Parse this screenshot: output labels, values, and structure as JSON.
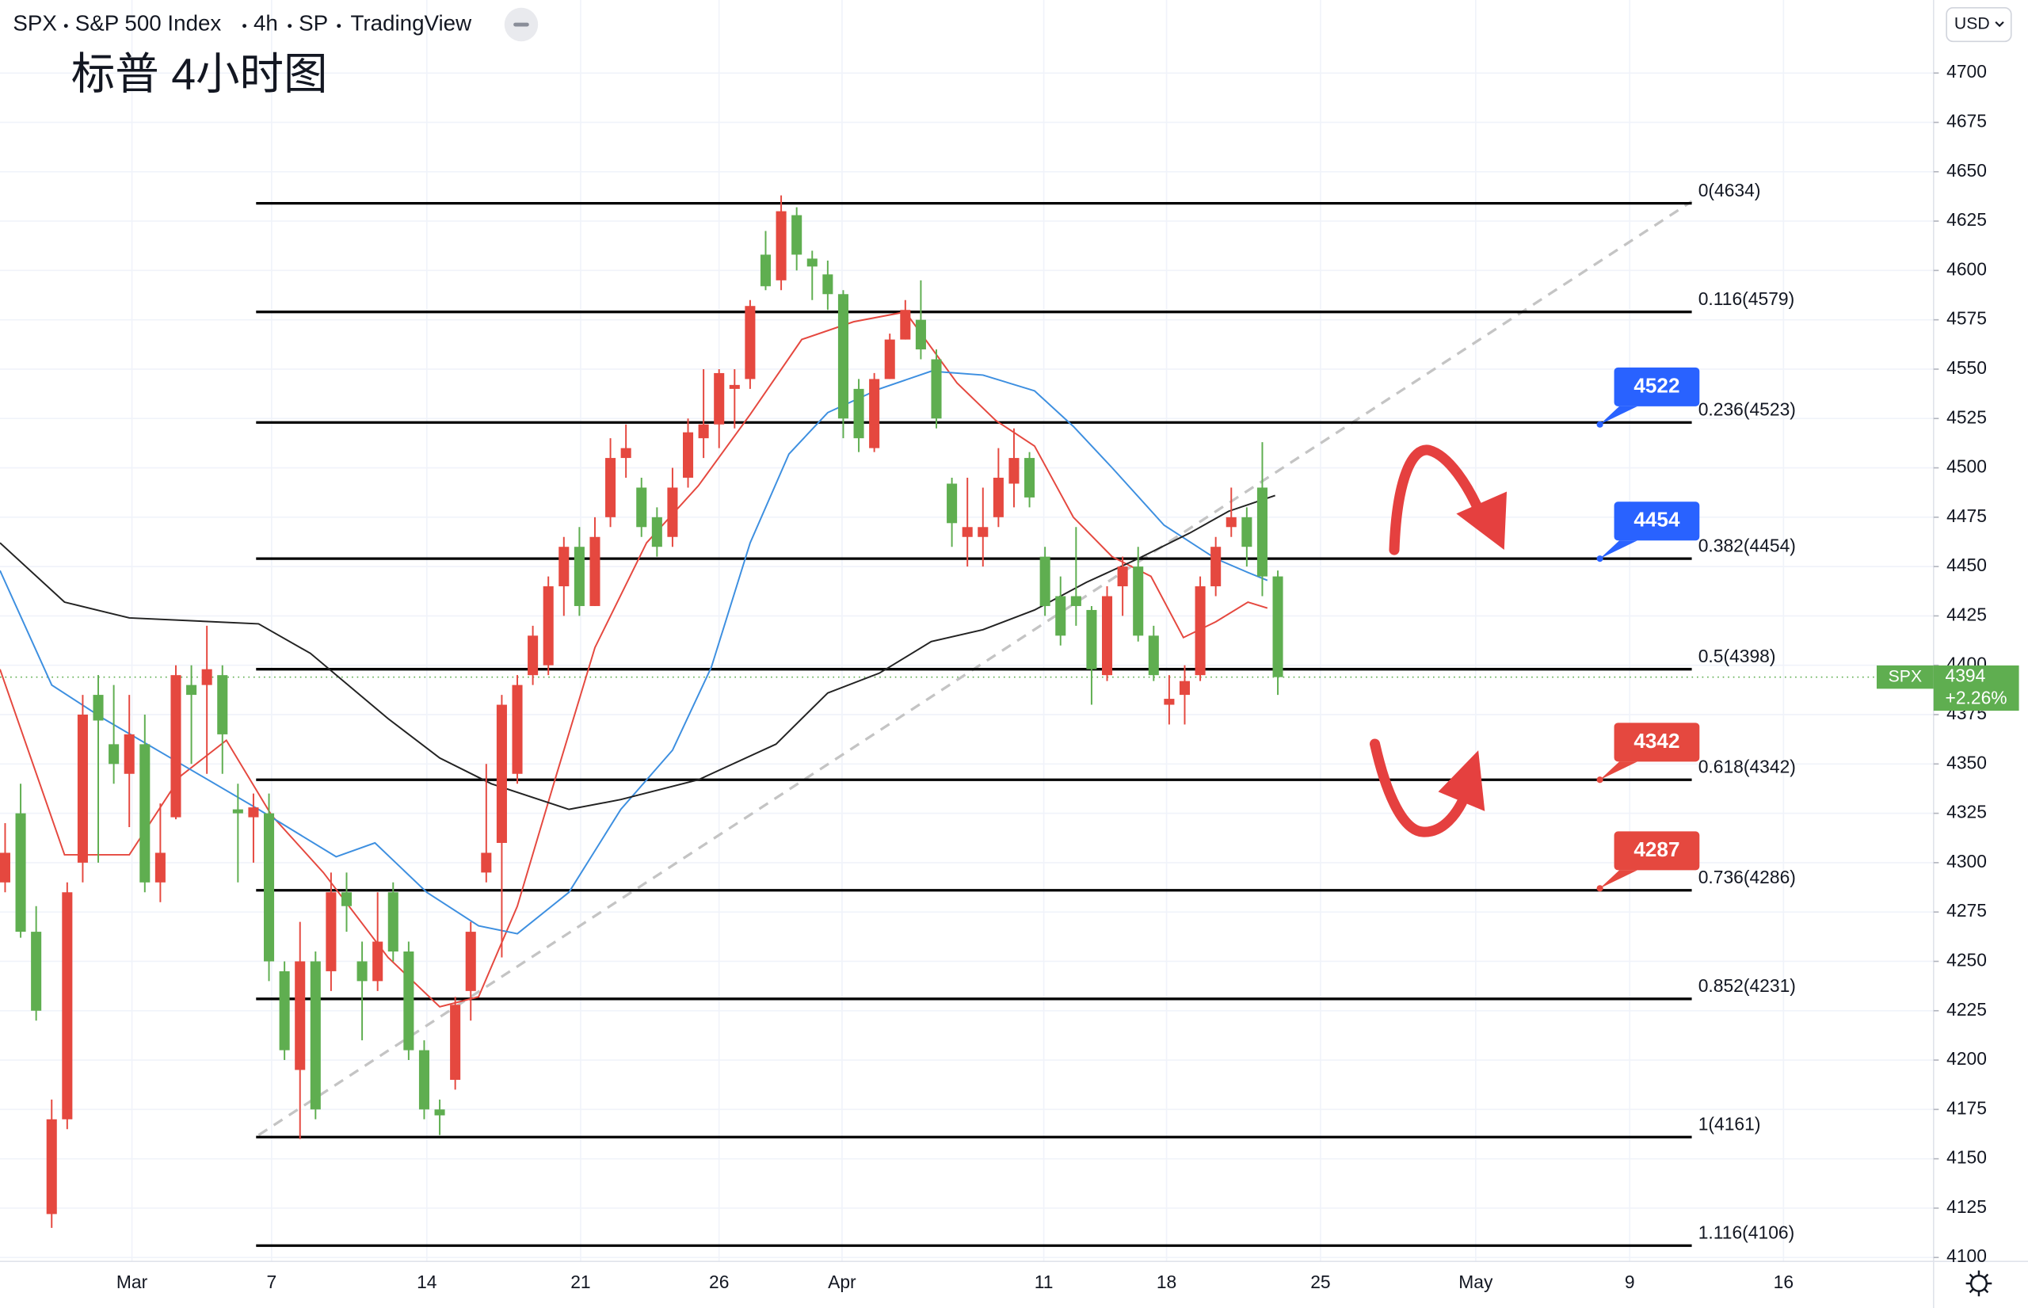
{
  "chart_data": {
    "type": "candlestick",
    "symbol": "SPX",
    "name": "S&P 500 Index",
    "interval": "4h",
    "exchange": "SP",
    "source": "TradingView",
    "currency": "USD",
    "title": "标普 4小时图",
    "up_color": "#e5483f",
    "down_color": "#5fae50",
    "x": [
      -17,
      -16,
      -15,
      -14,
      -13,
      -12,
      -11,
      -10,
      -9,
      -8,
      -7,
      -6,
      -5,
      -4,
      -3,
      -2,
      -1,
      0,
      1,
      2,
      3,
      4,
      5,
      6,
      7,
      8,
      9,
      10,
      11,
      12,
      13,
      14,
      15,
      16,
      17,
      18,
      19,
      20,
      21,
      22,
      23,
      24,
      25,
      26,
      27,
      28,
      29,
      30,
      31,
      32,
      33,
      34,
      35,
      36,
      37,
      38,
      39,
      40,
      41,
      42,
      43,
      44,
      45,
      46,
      47,
      48,
      49,
      50,
      51,
      52,
      53,
      54,
      55,
      56,
      57,
      58,
      59,
      60,
      61,
      62,
      63,
      64,
      65
    ],
    "open": [
      4290,
      4325,
      4265,
      4122,
      4170,
      4300,
      4385,
      4360,
      4345,
      4360,
      4290,
      4323,
      4390,
      4390,
      4395,
      4327,
      4323,
      4325,
      4245,
      4195,
      4250,
      4245,
      4285,
      4250,
      4240,
      4285,
      4255,
      4205,
      4175,
      4190,
      4235,
      4295,
      4310,
      4345,
      4395,
      4400,
      4440,
      4460,
      4430,
      4475,
      4505,
      4490,
      4475,
      4465,
      4495,
      4515,
      4522,
      4540,
      4545,
      4608,
      4595,
      4628,
      4606,
      4598,
      4588,
      4540,
      4510,
      4545,
      4565,
      4575,
      4555,
      4492,
      4465,
      4465,
      4475,
      4492,
      4505,
      4455,
      4435,
      4435,
      4428,
      4395,
      4440,
      4450,
      4415,
      4380,
      4385,
      4395,
      4440,
      4470,
      4475,
      4490,
      4445
    ],
    "high": [
      4320,
      4340,
      4278,
      4180,
      4290,
      4385,
      4395,
      4390,
      4385,
      4375,
      4330,
      4400,
      4400,
      4420,
      4400,
      4340,
      4335,
      4335,
      4250,
      4270,
      4255,
      4295,
      4295,
      4260,
      4285,
      4290,
      4260,
      4210,
      4180,
      4232,
      4270,
      4350,
      4385,
      4395,
      4420,
      4445,
      4465,
      4470,
      4475,
      4515,
      4522,
      4495,
      4480,
      4500,
      4525,
      4550,
      4550,
      4550,
      4585,
      4620,
      4638,
      4632,
      4610,
      4605,
      4590,
      4545,
      4548,
      4568,
      4585,
      4595,
      4560,
      4495,
      4495,
      4490,
      4510,
      4520,
      4508,
      4460,
      4445,
      4470,
      4430,
      4440,
      4455,
      4460,
      4420,
      4395,
      4400,
      4445,
      4465,
      4490,
      4480,
      4513,
      4448
    ],
    "low": [
      4285,
      4262,
      4220,
      4115,
      4165,
      4290,
      4300,
      4340,
      4318,
      4285,
      4280,
      4322,
      4350,
      4345,
      4345,
      4290,
      4300,
      4240,
      4200,
      4160,
      4170,
      4235,
      4265,
      4210,
      4235,
      4250,
      4200,
      4170,
      4162,
      4185,
      4220,
      4290,
      4252,
      4340,
      4390,
      4395,
      4425,
      4425,
      4430,
      4470,
      4495,
      4465,
      4455,
      4460,
      4490,
      4505,
      4510,
      4520,
      4540,
      4590,
      4590,
      4600,
      4585,
      4580,
      4515,
      4508,
      4508,
      4545,
      4565,
      4555,
      4520,
      4460,
      4450,
      4450,
      4470,
      4480,
      4480,
      4425,
      4410,
      4420,
      4380,
      4392,
      4425,
      4412,
      4392,
      4370,
      4370,
      4392,
      4435,
      4465,
      4450,
      4435,
      4385
    ],
    "close": [
      4305,
      4265,
      4225,
      4170,
      4285,
      4375,
      4372,
      4350,
      4365,
      4290,
      4305,
      4395,
      4385,
      4398,
      4365,
      4325,
      4328,
      4250,
      4205,
      4250,
      4175,
      4285,
      4278,
      4240,
      4260,
      4255,
      4205,
      4175,
      4172,
      4228,
      4265,
      4305,
      4380,
      4390,
      4415,
      4440,
      4460,
      4430,
      4465,
      4505,
      4510,
      4470,
      4460,
      4490,
      4518,
      4522,
      4548,
      4542,
      4582,
      4592,
      4630,
      4608,
      4602,
      4588,
      4525,
      4515,
      4545,
      4565,
      4580,
      4560,
      4525,
      4472,
      4470,
      4470,
      4495,
      4505,
      4485,
      4430,
      4415,
      4430,
      4398,
      4435,
      4450,
      4415,
      4395,
      4383,
      4392,
      4440,
      4460,
      4475,
      4460,
      4445,
      4394
    ],
    "lines": [
      {
        "color": "#e5483f",
        "x": [
          -17.33,
          -13.17,
          -9,
          -5.67,
          -2.75,
          0.17,
          3.5,
          7.67,
          11,
          13.5,
          16,
          18.5,
          21,
          24.33,
          27.67,
          31,
          34.33,
          37.67,
          41,
          44.33,
          46.83,
          49.33,
          51.83,
          54.33,
          56.83,
          58.92,
          61,
          63.08,
          64.33
        ],
        "values": [
          4398,
          4304,
          4304,
          4344,
          4362,
          4324,
          4295,
          4252,
          4227,
          4232,
          4278,
          4344,
          4409,
          4462,
          4491,
          4527,
          4565,
          4574,
          4579,
          4543,
          4524,
          4511,
          4475,
          4455,
          4445,
          4414,
          4422,
          4432,
          4429
        ]
      },
      {
        "color": "#3d8fe0",
        "x": [
          -17.33,
          -14,
          -10.67,
          -5.67,
          -0.67,
          4.33,
          6.83,
          10.17,
          13.5,
          16,
          19.33,
          22.67,
          26,
          28.5,
          31,
          33.5,
          36,
          39.33,
          42.67,
          46,
          49.33,
          51.83,
          54.33,
          57.67,
          61,
          63.08,
          64.33
        ],
        "values": [
          4448,
          4390,
          4373,
          4350,
          4327,
          4303,
          4310,
          4285,
          4268,
          4264,
          4285,
          4327,
          4357,
          4399,
          4462,
          4507,
          4528,
          4540,
          4549,
          4547,
          4539,
          4521,
          4500,
          4471,
          4454,
          4447,
          4443
        ]
      },
      {
        "color": "#222222",
        "x": [
          -17.33,
          -13.17,
          -9,
          -0.67,
          2.67,
          7.67,
          11,
          14.33,
          19.33,
          22.67,
          27.67,
          32.67,
          36,
          39.33,
          42.67,
          46,
          49.33,
          52.67,
          56,
          59.33,
          61.83,
          64.83
        ],
        "values": [
          4462,
          4432,
          4424,
          4421,
          4406,
          4373,
          4353,
          4340,
          4327,
          4332,
          4342,
          4360,
          4386,
          4396,
          4412,
          4418,
          4428,
          4442,
          4454,
          4467,
          4478,
          4486
        ]
      }
    ],
    "trendline": {
      "x": [
        -0.67,
        91.67
      ],
      "values": [
        4162,
        4635
      ]
    },
    "fib": {
      "x": [
        -0.83,
        91.67
      ],
      "levels": [
        {
          "value": 4634,
          "label": "0(4634)"
        },
        {
          "value": 4579,
          "label": "0.116(4579)"
        },
        {
          "value": 4523,
          "label": "0.236(4523)"
        },
        {
          "value": 4454,
          "label": "0.382(4454)"
        },
        {
          "value": 4398,
          "label": "0.5(4398)"
        },
        {
          "value": 4342,
          "label": "0.618(4342)"
        },
        {
          "value": 4286,
          "label": "0.736(4286)"
        },
        {
          "value": 4231,
          "label": "0.852(4231)"
        },
        {
          "value": 4161,
          "label": "1(4161)"
        },
        {
          "value": 4106,
          "label": "1.116(4106)"
        }
      ]
    },
    "price_labels": [
      {
        "value": 4522,
        "color": "#2962ff"
      },
      {
        "value": 4454,
        "color": "#2962ff"
      },
      {
        "value": 4342,
        "color": "#e5483f"
      },
      {
        "value": 4287,
        "color": "#e5483f"
      }
    ],
    "last_price": 4394,
    "change": "+2.26%",
    "last_color": "#5fae50",
    "xlim": [
      -17.33,
      107.25
    ],
    "xticks": [
      {
        "value": -8.83,
        "label": "Mar"
      },
      {
        "value": 0.17,
        "label": "7"
      },
      {
        "value": 10.17,
        "label": "14"
      },
      {
        "value": 20.08,
        "label": "21"
      },
      {
        "value": 29,
        "label": "26"
      },
      {
        "value": 36.92,
        "label": "Apr"
      },
      {
        "value": 49.92,
        "label": "11"
      },
      {
        "value": 57.83,
        "label": "18"
      },
      {
        "value": 67.75,
        "label": "25"
      },
      {
        "value": 77.75,
        "label": "May"
      },
      {
        "value": 87.67,
        "label": "9"
      },
      {
        "value": 97.58,
        "label": "16"
      }
    ],
    "ylim": [
      4098,
      4737
    ],
    "yticks": [
      4100,
      4125,
      4150,
      4175,
      4200,
      4225,
      4250,
      4275,
      4300,
      4325,
      4350,
      4375,
      4400,
      4425,
      4450,
      4475,
      4500,
      4525,
      4550,
      4575,
      4600,
      4625,
      4650,
      4675,
      4700
    ],
    "grid": true
  }
}
